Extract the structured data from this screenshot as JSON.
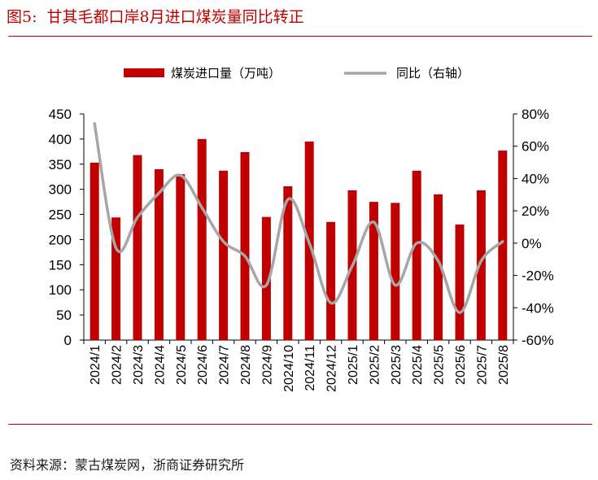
{
  "header": {
    "figure_label": "图5:",
    "title": "甘其毛都口岸8月进口煤炭量同比转正"
  },
  "footer": {
    "source": "资料来源：蒙古煤炭网，浙商证券研究所"
  },
  "colors": {
    "bar": "#c00000",
    "line": "#a6a6a6",
    "rule": "#c00000"
  },
  "chart_data": {
    "type": "bar",
    "title": "甘其毛都口岸8月进口煤炭量同比转正",
    "categories": [
      "2024/1",
      "2024/2",
      "2024/3",
      "2024/4",
      "2024/5",
      "2024/6",
      "2024/7",
      "2024/8",
      "2024/9",
      "2024/10",
      "2024/11",
      "2024/12",
      "2025/1",
      "2025/2",
      "2025/3",
      "2025/4",
      "2025/5",
      "2025/6",
      "2025/7",
      "2025/8"
    ],
    "series": [
      {
        "name": "煤炭进口量（万吨）",
        "type": "bar",
        "axis": "left",
        "values": [
          353,
          244,
          368,
          340,
          330,
          400,
          337,
          374,
          245,
          306,
          395,
          235,
          298,
          275,
          273,
          337,
          290,
          230,
          298,
          377
        ]
      },
      {
        "name": "同比（右轴）",
        "type": "line",
        "axis": "right",
        "unit": "%",
        "values": [
          74,
          -3,
          16,
          31,
          42,
          22,
          1,
          -8,
          -26,
          27,
          0,
          -37,
          -14,
          13,
          -26,
          0,
          -11,
          -43,
          -11,
          1
        ]
      }
    ],
    "y_left": {
      "min": 0,
      "max": 450,
      "ticks": [
        0,
        50,
        100,
        150,
        200,
        250,
        300,
        350,
        400,
        450
      ]
    },
    "y_right": {
      "min": -60,
      "max": 80,
      "ticks": [
        "-60%",
        "-40%",
        "-20%",
        "0%",
        "20%",
        "40%",
        "60%",
        "80%"
      ]
    },
    "legend": {
      "placement": "top-center",
      "bar_label": "煤炭进口量（万吨）",
      "line_label": "同比（右轴）"
    },
    "grid": false
  }
}
